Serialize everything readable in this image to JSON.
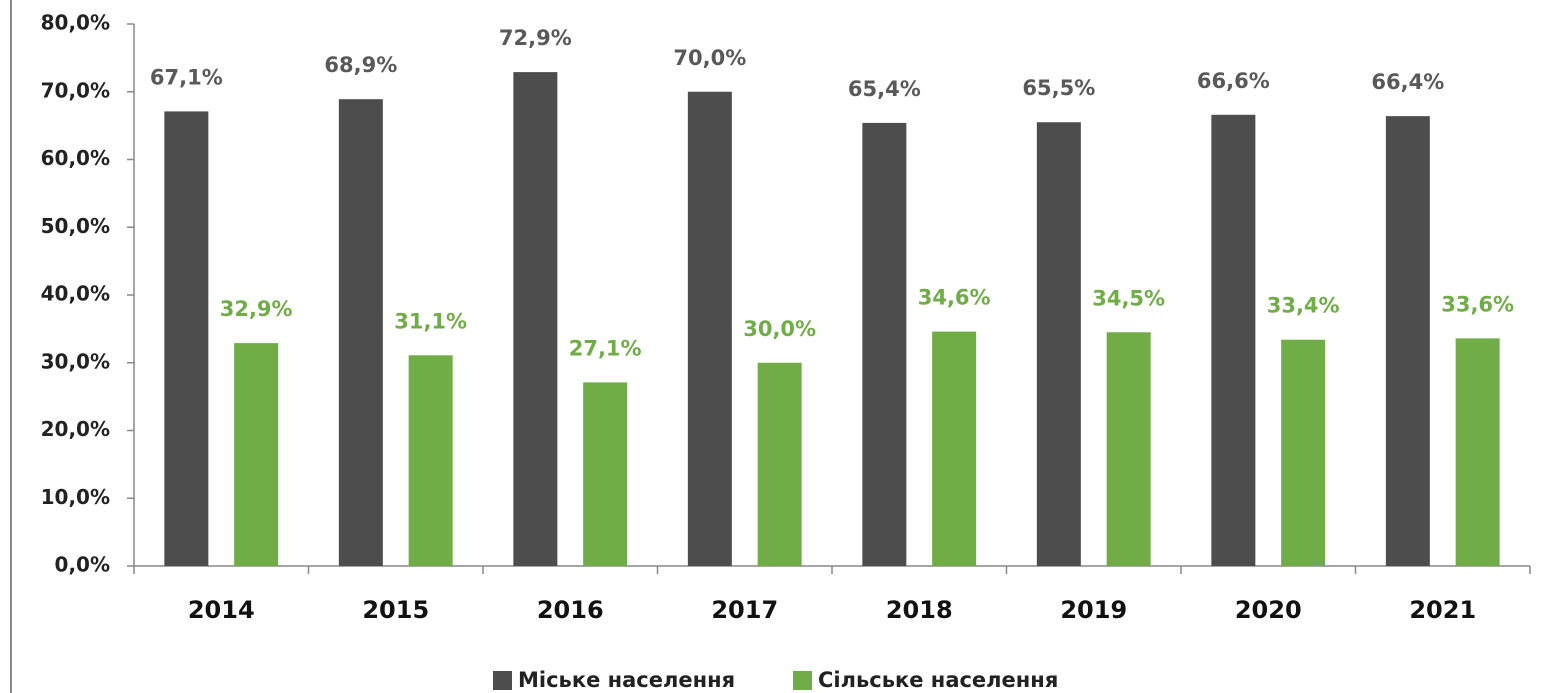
{
  "chart_data": {
    "type": "bar",
    "categories": [
      "2014",
      "2015",
      "2016",
      "2017",
      "2018",
      "2019",
      "2020",
      "2021"
    ],
    "series": [
      {
        "name": "Міське населення",
        "color": "#4d4d4d",
        "label_color": "#595959",
        "values": [
          67.1,
          68.9,
          72.9,
          70.0,
          65.4,
          65.5,
          66.6,
          66.4
        ],
        "value_labels": [
          "67,1%",
          "68,9%",
          "72,9%",
          "70,0%",
          "65,4%",
          "65,5%",
          "66,6%",
          "66,4%"
        ]
      },
      {
        "name": "Сільське населення",
        "color": "#70ad47",
        "label_color": "#70ad47",
        "values": [
          32.9,
          31.1,
          27.1,
          30.0,
          34.6,
          34.5,
          33.4,
          33.6
        ],
        "value_labels": [
          "32,9%",
          "31,1%",
          "27,1%",
          "30,0%",
          "34,6%",
          "34,5%",
          "33,4%",
          "33,6%"
        ]
      }
    ],
    "ylim": [
      0,
      80
    ],
    "yticks": [
      {
        "value": 0,
        "label": "0,0%"
      },
      {
        "value": 10,
        "label": "10,0%"
      },
      {
        "value": 20,
        "label": "20,0%"
      },
      {
        "value": 30,
        "label": "30,0%"
      },
      {
        "value": 40,
        "label": "40,0%"
      },
      {
        "value": 50,
        "label": "50,0%"
      },
      {
        "value": 60,
        "label": "60,0%"
      },
      {
        "value": 70,
        "label": "70,0%"
      },
      {
        "value": 80,
        "label": "80,0%"
      }
    ],
    "grid": false,
    "legend": "bottom"
  }
}
